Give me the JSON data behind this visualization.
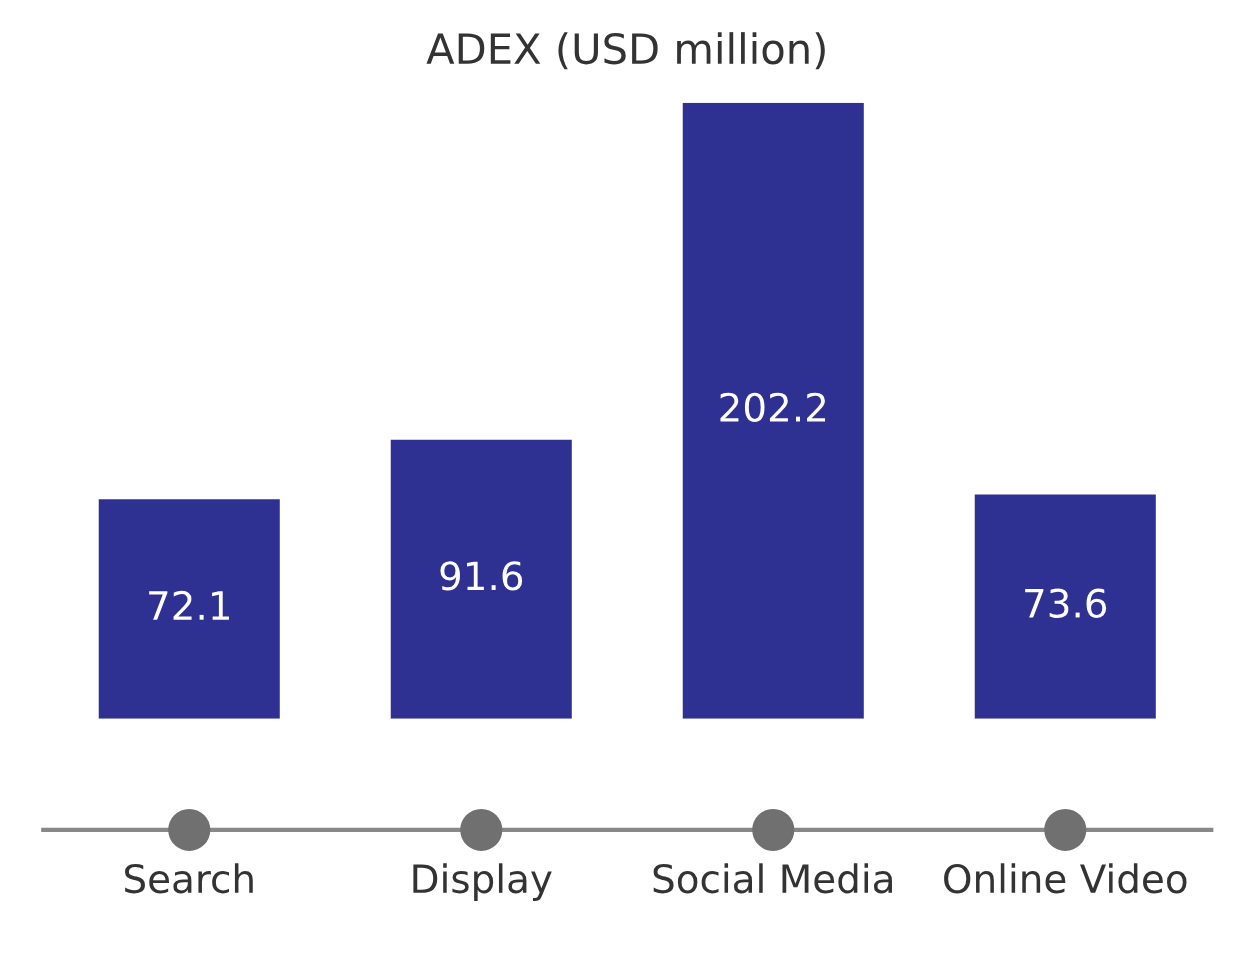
{
  "chart_data": {
    "type": "bar",
    "title": "ADEX (USD million)",
    "categories": [
      "Search",
      "Display",
      "Social Media",
      "Online Video"
    ],
    "values": [
      72.1,
      91.6,
      202.2,
      73.6
    ],
    "color": "#2e3192",
    "data_labels": true,
    "grid": false,
    "legend": false
  }
}
